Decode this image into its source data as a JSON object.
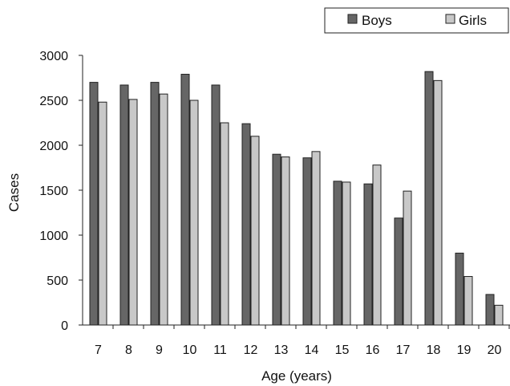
{
  "chart_data": {
    "type": "bar",
    "categories": [
      "7",
      "8",
      "9",
      "10",
      "11",
      "12",
      "13",
      "14",
      "15",
      "16",
      "17",
      "18",
      "19",
      "20"
    ],
    "series": [
      {
        "name": "Boys",
        "values": [
          2700,
          2670,
          2700,
          2790,
          2670,
          2240,
          1900,
          1860,
          1600,
          1570,
          1190,
          2820,
          800,
          340
        ],
        "color": "#666666"
      },
      {
        "name": "Girls",
        "values": [
          2480,
          2510,
          2570,
          2500,
          2250,
          2100,
          1870,
          1930,
          1590,
          1780,
          1490,
          2720,
          540,
          220
        ],
        "color": "#c8c8c8"
      }
    ],
    "xlabel": "Age (years)",
    "ylabel": "Cases",
    "ylim": [
      0,
      3000
    ],
    "yticks": [
      "0",
      "500",
      "1000",
      "1500",
      "2000",
      "2500",
      "3000"
    ],
    "grid": false,
    "legend_position": "top-right"
  }
}
